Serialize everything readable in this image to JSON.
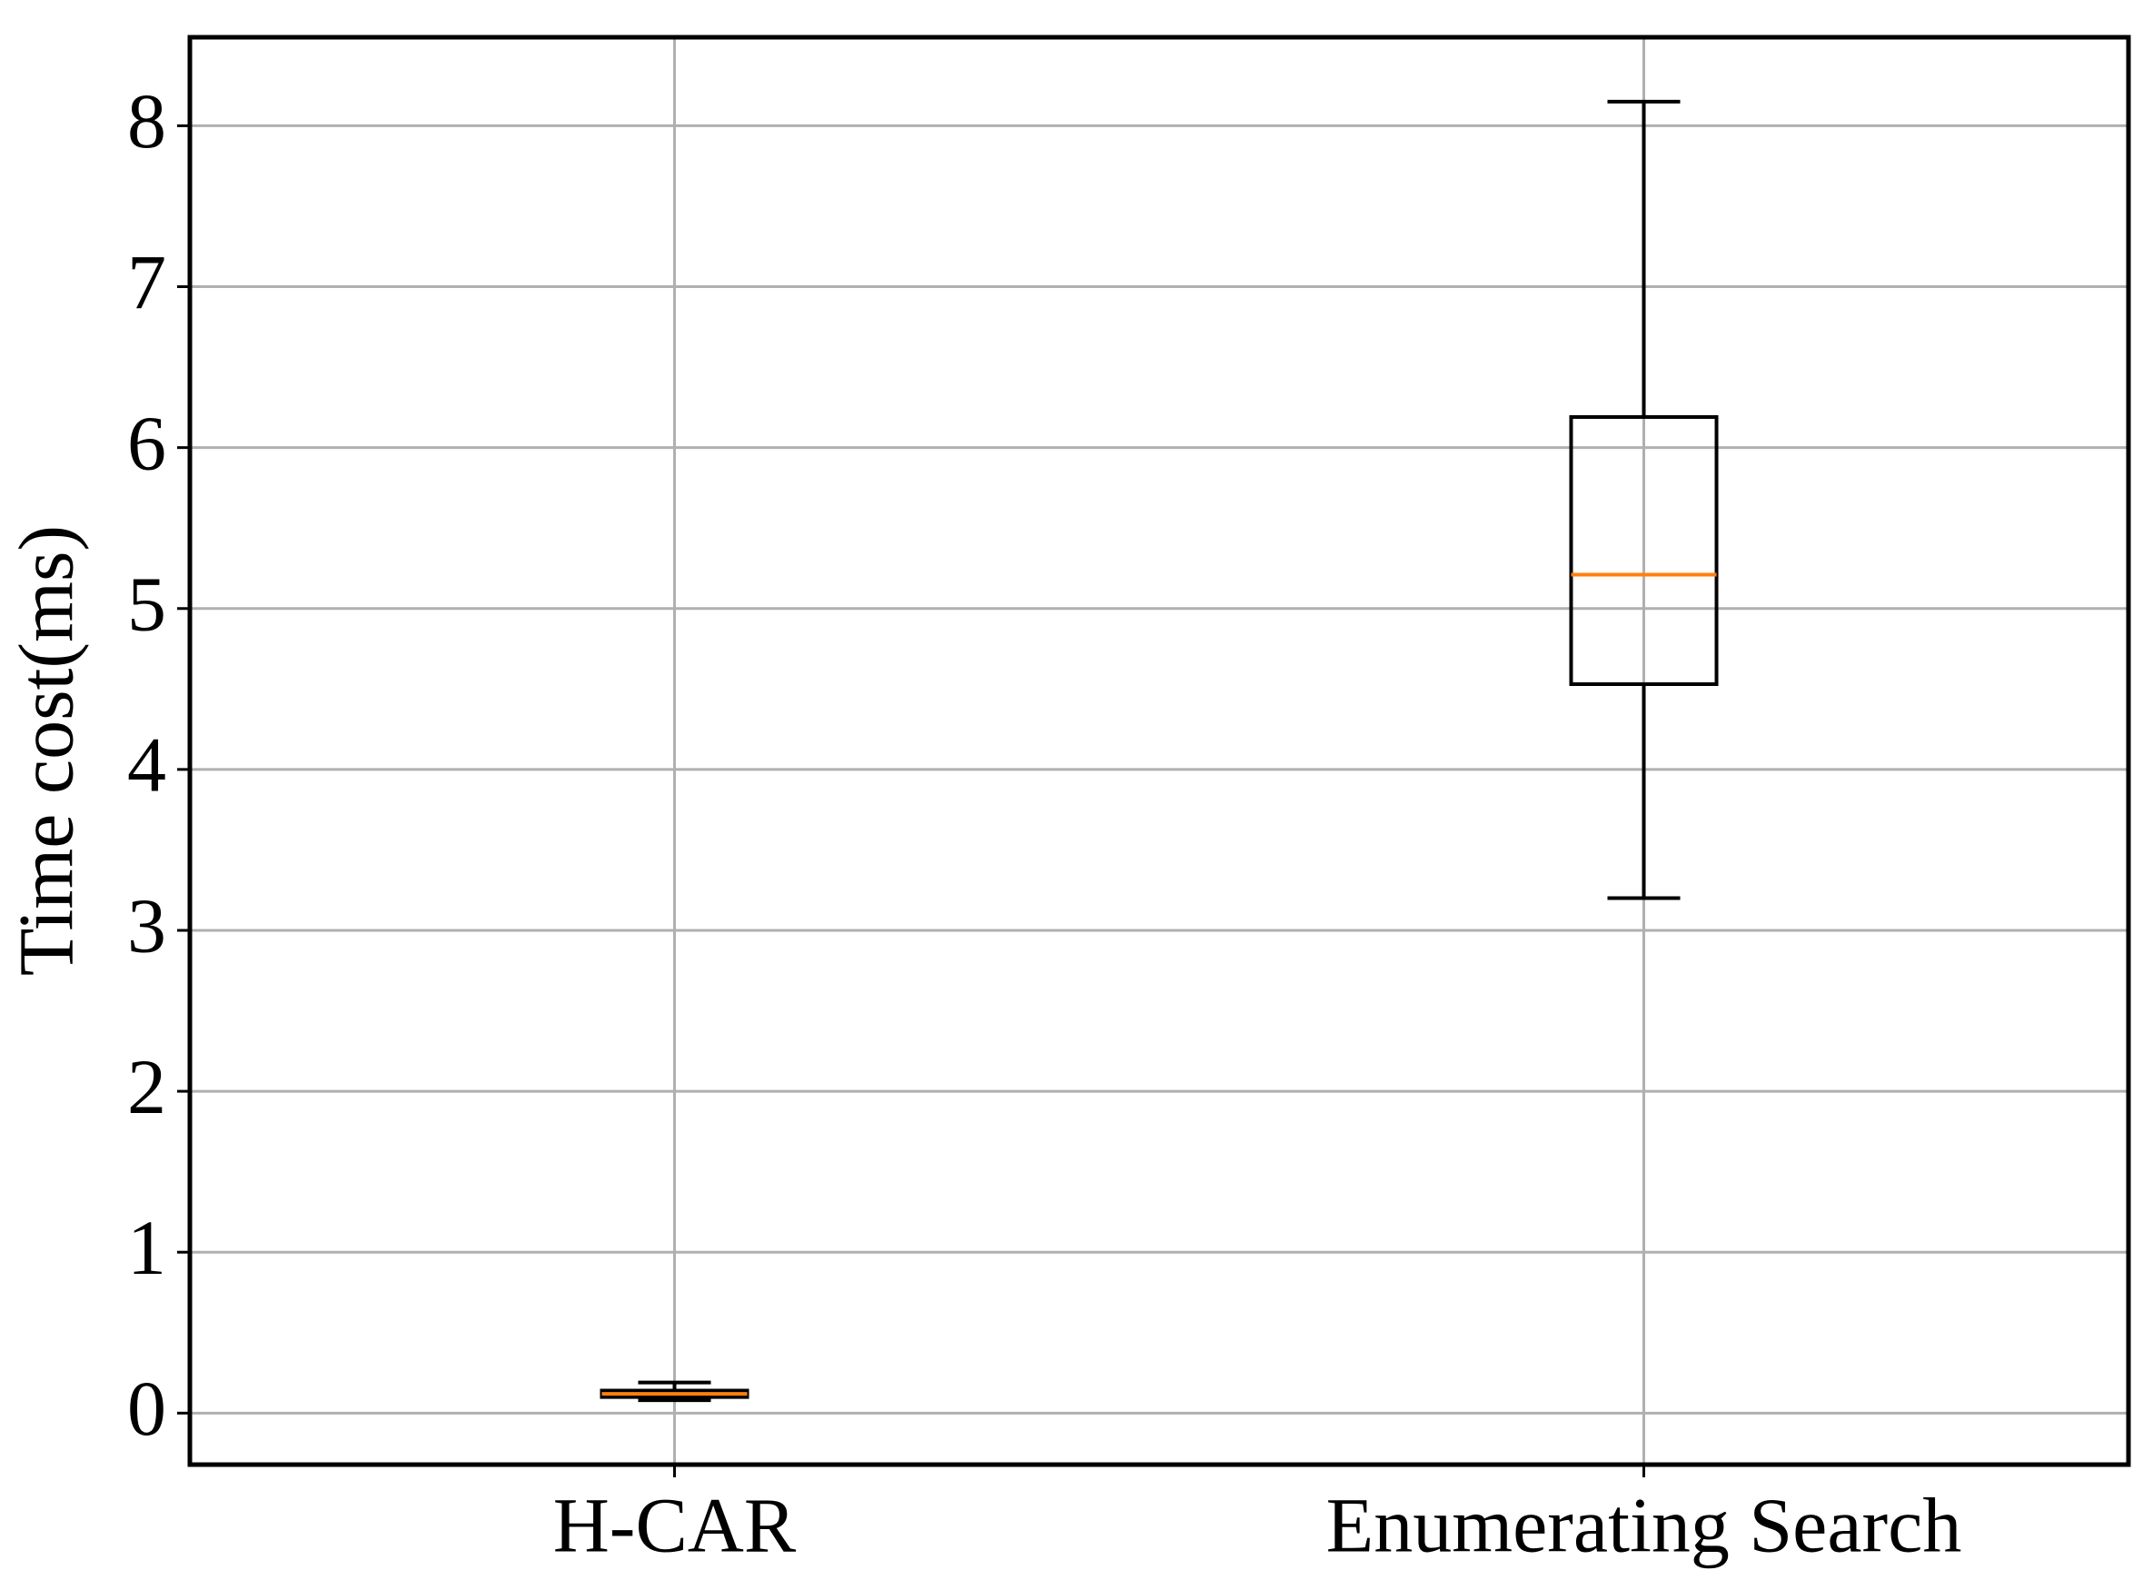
{
  "chart_data": {
    "type": "box",
    "ylabel": "Time cost(ms)",
    "categories": [
      "H-CAR",
      "Enumerating Search"
    ],
    "boxes": [
      {
        "whislo": 0.08,
        "q1": 0.1,
        "med": 0.12,
        "q3": 0.14,
        "whishi": 0.19
      },
      {
        "whislo": 3.2,
        "q1": 4.53,
        "med": 5.21,
        "q3": 6.19,
        "whishi": 8.15
      }
    ],
    "box_color": "#000000",
    "median_color": "#ff7f0e",
    "ylim": [
      -0.32,
      8.55
    ],
    "yticks": [
      0,
      1,
      2,
      3,
      4,
      5,
      6,
      7,
      8
    ],
    "grid": true
  }
}
